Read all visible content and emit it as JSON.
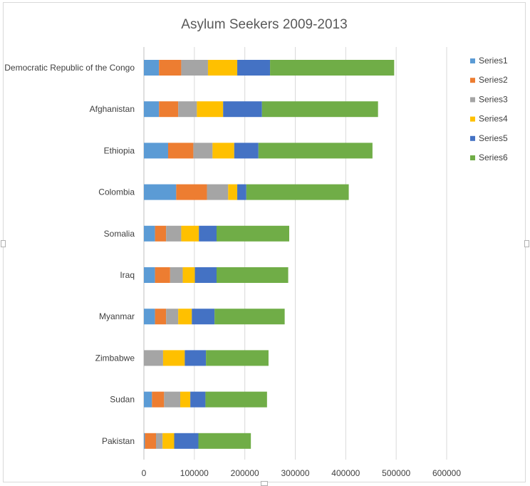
{
  "chart_data": {
    "type": "bar",
    "orientation": "horizontal",
    "stacked": true,
    "title": "Asylum Seekers 2009-2013",
    "xlabel": "",
    "ylabel": "",
    "xlim": [
      0,
      600000
    ],
    "x_ticks": [
      "0",
      "100000",
      "200000",
      "300000",
      "400000",
      "500000",
      "600000"
    ],
    "grid": "vertical",
    "legend_position": "right",
    "categories": [
      "Democratic Republic of the Congo",
      "Afghanistan",
      "Ethiopia",
      "Colombia",
      "Somalia",
      "Iraq",
      "Myanmar",
      "Zimbabwe",
      "Sudan",
      "Pakistan"
    ],
    "series": [
      {
        "name": "Series1",
        "color": "#5b9bd5",
        "values": [
          30000,
          30000,
          48000,
          64000,
          22000,
          22000,
          22000,
          0,
          16000,
          2000
        ]
      },
      {
        "name": "Series2",
        "color": "#ed7d31",
        "values": [
          44000,
          38000,
          50000,
          61000,
          22000,
          30000,
          22000,
          0,
          24000,
          22000
        ]
      },
      {
        "name": "Series3",
        "color": "#a5a5a5",
        "values": [
          53000,
          37000,
          38000,
          42000,
          30000,
          25000,
          24000,
          38000,
          32000,
          13000
        ]
      },
      {
        "name": "Series4",
        "color": "#ffc000",
        "values": [
          58000,
          52000,
          43000,
          18000,
          35000,
          24000,
          27000,
          43000,
          20000,
          23000
        ]
      },
      {
        "name": "Series5",
        "color": "#4472c4",
        "values": [
          65000,
          77000,
          48000,
          18000,
          35000,
          43000,
          45000,
          42000,
          30000,
          48000
        ]
      },
      {
        "name": "Series6",
        "color": "#70ad47",
        "values": [
          246000,
          230000,
          226000,
          203000,
          144000,
          142000,
          139000,
          124000,
          122000,
          104000
        ]
      }
    ]
  }
}
